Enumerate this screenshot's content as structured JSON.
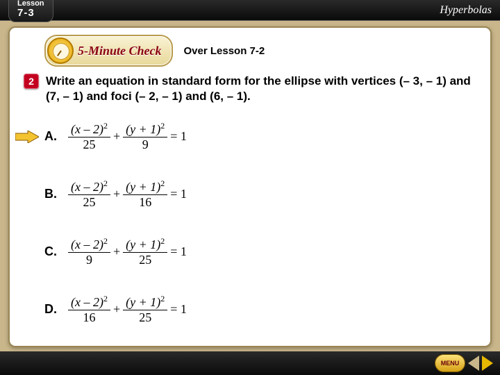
{
  "colors": {
    "page_bg": "#c9b68a",
    "bar_dark": "#1a1a1a",
    "accent_red": "#c40020",
    "gold_light": "#ffe27a",
    "gold_dark": "#d4a015"
  },
  "topbar": {
    "lesson_label": "Lesson",
    "lesson_number": "7-3",
    "chapter_title": "Hyperbolas"
  },
  "header": {
    "check_label": "5-Minute Check",
    "over_lesson": "Over Lesson 7-2"
  },
  "question": {
    "number": "2",
    "text": "Write an equation in standard form for the ellipse with vertices (– 3, – 1) and (7, – 1) and foci (– 2, – 1) and (6, – 1)."
  },
  "choices": [
    {
      "label": "A.",
      "num1": "(x – 2)",
      "den1": "25",
      "num2": "(y + 1)",
      "den2": "9",
      "correct": true
    },
    {
      "label": "B.",
      "num1": "(x – 2)",
      "den1": "25",
      "num2": "(y + 1)",
      "den2": "16",
      "correct": false
    },
    {
      "label": "C.",
      "num1": "(x – 2)",
      "den1": "9",
      "num2": "(y + 1)",
      "den2": "25",
      "correct": false
    },
    {
      "label": "D.",
      "num1": "(x – 2)",
      "den1": "16",
      "num2": "(y + 1)",
      "den2": "25",
      "correct": false
    }
  ],
  "choice_style": {
    "exponent_text": "2",
    "operator_between": "+",
    "rhs": "= 1",
    "label_fontsize": 18,
    "eq_fontsize": 18,
    "font_family": "Times New Roman"
  },
  "arrow": {
    "fill": "#f4c430",
    "stroke": "#8a5a00"
  },
  "footer": {
    "menu_label": "MENU",
    "nav_left_color": "#c9b68a",
    "nav_right_color": "#e6b800"
  }
}
